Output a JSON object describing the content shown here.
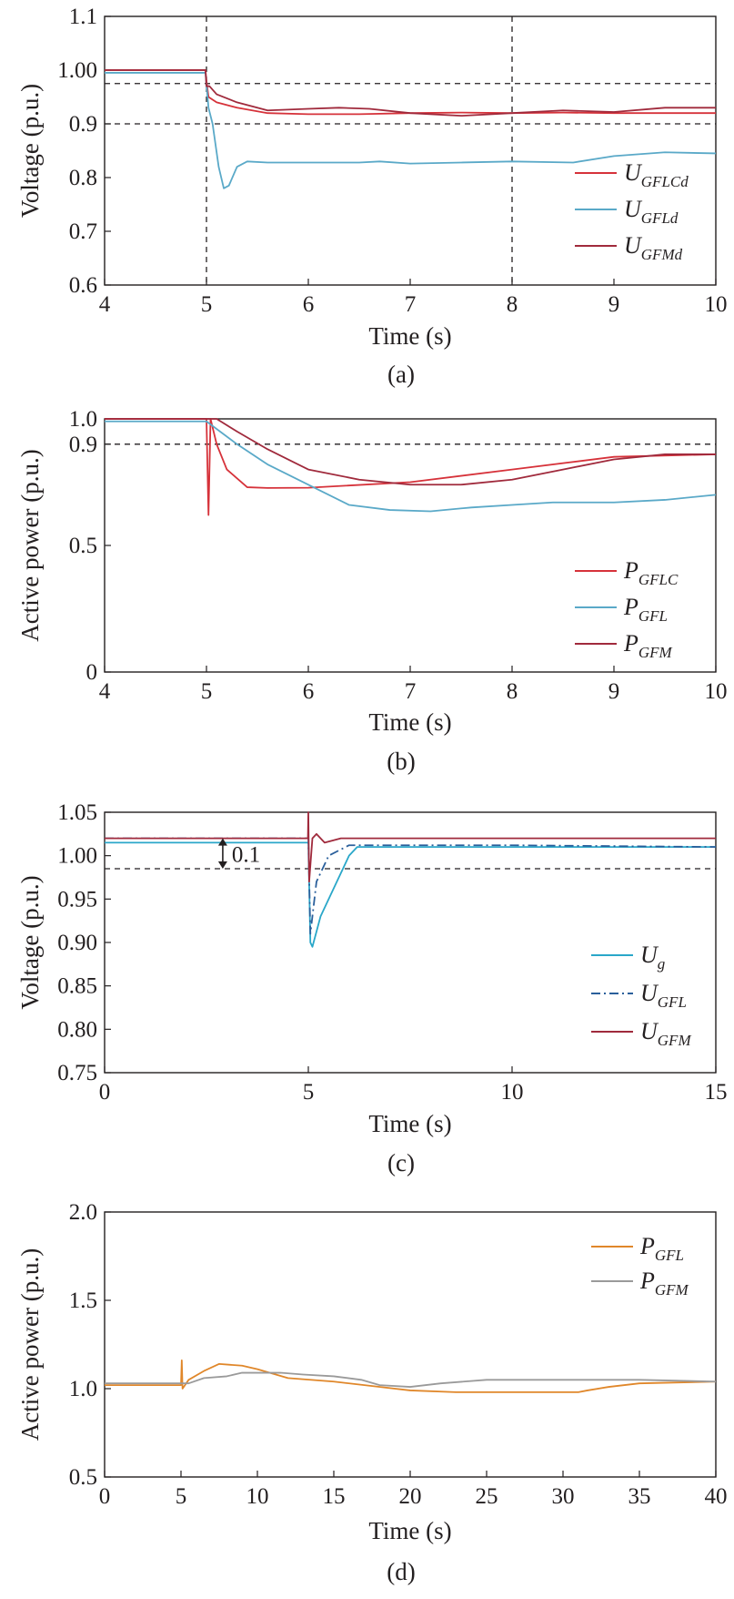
{
  "chart_data": [
    {
      "type": "line",
      "panel_label": "(a)",
      "xlabel": "Time (s)",
      "ylabel": "Voltage (p.u.)",
      "xlim": [
        4,
        10
      ],
      "ylim": [
        0.6,
        1.1
      ],
      "xticks": [
        4,
        5,
        6,
        7,
        8,
        9,
        10
      ],
      "yticks": [
        0.6,
        0.7,
        0.8,
        0.9,
        1.0,
        1.1
      ],
      "ytick_labels": [
        "0.6",
        "0.7",
        "0.8",
        "0.9",
        "1.00",
        "1.1"
      ],
      "grid": false,
      "legend_position": "bottom-right",
      "reference_lines": {
        "horizontal": [
          0.975,
          0.9
        ],
        "vertical": [
          5,
          8
        ]
      },
      "series": [
        {
          "name": "U",
          "subscript": "GFLCd",
          "color": "#d6323a",
          "dash": "",
          "points": [
            [
              4,
              1.0
            ],
            [
              4.99,
              1.0
            ],
            [
              5.0,
              0.98
            ],
            [
              5.02,
              0.95
            ],
            [
              5.1,
              0.94
            ],
            [
              5.3,
              0.93
            ],
            [
              5.6,
              0.92
            ],
            [
              6.0,
              0.918
            ],
            [
              6.5,
              0.918
            ],
            [
              7,
              0.92
            ],
            [
              7.5,
              0.921
            ],
            [
              8,
              0.92
            ],
            [
              8.5,
              0.921
            ],
            [
              9,
              0.92
            ],
            [
              9.5,
              0.92
            ],
            [
              10,
              0.92
            ]
          ]
        },
        {
          "name": "U",
          "subscript": "GFLd",
          "color": "#5aa9c8",
          "dash": "",
          "points": [
            [
              4,
              0.995
            ],
            [
              4.99,
              0.995
            ],
            [
              5.02,
              0.93
            ],
            [
              5.06,
              0.9
            ],
            [
              5.12,
              0.82
            ],
            [
              5.17,
              0.78
            ],
            [
              5.22,
              0.785
            ],
            [
              5.3,
              0.82
            ],
            [
              5.4,
              0.83
            ],
            [
              5.6,
              0.828
            ],
            [
              6,
              0.828
            ],
            [
              6.5,
              0.828
            ],
            [
              6.7,
              0.83
            ],
            [
              7,
              0.826
            ],
            [
              7.5,
              0.828
            ],
            [
              8,
              0.83
            ],
            [
              8.6,
              0.828
            ],
            [
              9,
              0.84
            ],
            [
              9.5,
              0.847
            ],
            [
              10,
              0.845
            ]
          ]
        },
        {
          "name": "U",
          "subscript": "GFMd",
          "color": "#a02a3c",
          "dash": "",
          "points": [
            [
              4,
              1.0
            ],
            [
              4.99,
              1.0
            ],
            [
              5.0,
              0.97
            ],
            [
              5.03,
              0.97
            ],
            [
              5.1,
              0.955
            ],
            [
              5.3,
              0.94
            ],
            [
              5.6,
              0.925
            ],
            [
              6.0,
              0.928
            ],
            [
              6.3,
              0.93
            ],
            [
              6.6,
              0.928
            ],
            [
              7,
              0.92
            ],
            [
              7.5,
              0.915
            ],
            [
              8,
              0.92
            ],
            [
              8.5,
              0.925
            ],
            [
              9,
              0.922
            ],
            [
              9.5,
              0.93
            ],
            [
              10,
              0.93
            ]
          ]
        }
      ]
    },
    {
      "type": "line",
      "panel_label": "(b)",
      "xlabel": "Time (s)",
      "ylabel": "Active power (p.u.)",
      "xlim": [
        4,
        10
      ],
      "ylim": [
        0,
        1.0
      ],
      "xticks": [
        4,
        5,
        6,
        7,
        8,
        9,
        10
      ],
      "yticks": [
        0,
        0.5,
        0.9,
        1.0
      ],
      "ytick_labels": [
        "0",
        "0.5",
        "0.9",
        "1.0"
      ],
      "grid": false,
      "legend_position": "bottom-right",
      "reference_lines": {
        "horizontal": [
          0.9
        ],
        "vertical": []
      },
      "series": [
        {
          "name": "P",
          "subscript": "GFLC",
          "color": "#d6323a",
          "dash": "",
          "points": [
            [
              4,
              1.0
            ],
            [
              5.0,
              1.0
            ],
            [
              5.02,
              0.62
            ],
            [
              5.04,
              1.0
            ],
            [
              5.1,
              0.9
            ],
            [
              5.2,
              0.8
            ],
            [
              5.4,
              0.73
            ],
            [
              5.6,
              0.727
            ],
            [
              6,
              0.728
            ],
            [
              7,
              0.75
            ],
            [
              8,
              0.8
            ],
            [
              9,
              0.85
            ],
            [
              10,
              0.86
            ]
          ]
        },
        {
          "name": "P",
          "subscript": "GFL",
          "color": "#5aa9c8",
          "dash": "",
          "points": [
            [
              4,
              0.99
            ],
            [
              5.0,
              0.99
            ],
            [
              5.3,
              0.9
            ],
            [
              5.6,
              0.82
            ],
            [
              6,
              0.74
            ],
            [
              6.4,
              0.66
            ],
            [
              6.8,
              0.64
            ],
            [
              7.2,
              0.635
            ],
            [
              7.6,
              0.65
            ],
            [
              8,
              0.66
            ],
            [
              8.4,
              0.67
            ],
            [
              9,
              0.67
            ],
            [
              9.5,
              0.68
            ],
            [
              10,
              0.7
            ]
          ]
        },
        {
          "name": "P",
          "subscript": "GFM",
          "color": "#a02a3c",
          "dash": "",
          "points": [
            [
              4,
              1.0
            ],
            [
              5.0,
              1.0
            ],
            [
              5.1,
              1.0
            ],
            [
              5.3,
              0.95
            ],
            [
              5.6,
              0.88
            ],
            [
              6,
              0.8
            ],
            [
              6.5,
              0.76
            ],
            [
              7,
              0.74
            ],
            [
              7.5,
              0.74
            ],
            [
              8,
              0.76
            ],
            [
              8.5,
              0.8
            ],
            [
              9,
              0.84
            ],
            [
              9.5,
              0.86
            ],
            [
              10,
              0.86
            ]
          ]
        }
      ]
    },
    {
      "type": "line",
      "panel_label": "(c)",
      "xlabel": "Time (s)",
      "ylabel": "Voltage (p.u.)",
      "xlim": [
        0,
        15
      ],
      "ylim": [
        0.75,
        1.05
      ],
      "xticks": [
        0,
        5,
        10,
        15
      ],
      "yticks": [
        0.75,
        0.8,
        0.85,
        0.9,
        0.95,
        1.0,
        1.05
      ],
      "ytick_labels": [
        "0.75",
        "0.80",
        "0.85",
        "0.90",
        "0.95",
        "1.00",
        "1.05"
      ],
      "grid": false,
      "legend_position": "bottom-right",
      "reference_lines": {
        "horizontal": [
          0.985
        ],
        "vertical": []
      },
      "annotation": {
        "text": "0.1",
        "x": 2.9,
        "y_from": 1.02,
        "y_to": 0.985
      },
      "series": [
        {
          "name": "U",
          "subscript": "g",
          "color": "#2aa7c9",
          "dash": "",
          "points": [
            [
              0,
              1.015
            ],
            [
              5.0,
              1.015
            ],
            [
              5.05,
              0.9
            ],
            [
              5.1,
              0.895
            ],
            [
              5.3,
              0.93
            ],
            [
              5.6,
              0.96
            ],
            [
              6.0,
              1.0
            ],
            [
              6.2,
              1.01
            ],
            [
              7,
              1.01
            ],
            [
              10,
              1.01
            ],
            [
              15,
              1.01
            ]
          ]
        },
        {
          "name": "U",
          "subscript": "GFL",
          "color": "#2a5f9b",
          "dash": "10 4 2 4",
          "points": [
            [
              0,
              1.02
            ],
            [
              5.0,
              1.02
            ],
            [
              5.05,
              0.91
            ],
            [
              5.2,
              0.97
            ],
            [
              5.5,
              1.0
            ],
            [
              6.0,
              1.012
            ],
            [
              7,
              1.012
            ],
            [
              10,
              1.012
            ],
            [
              15,
              1.01
            ]
          ]
        },
        {
          "name": "U",
          "subscript": "GFM",
          "color": "#a02a3c",
          "dash": "",
          "points": [
            [
              0,
              1.02
            ],
            [
              4.99,
              1.02
            ],
            [
              5.0,
              1.05
            ],
            [
              5.02,
              0.97
            ],
            [
              5.1,
              1.02
            ],
            [
              5.2,
              1.025
            ],
            [
              5.4,
              1.015
            ],
            [
              5.8,
              1.02
            ],
            [
              7,
              1.02
            ],
            [
              10,
              1.02
            ],
            [
              15,
              1.02
            ]
          ]
        }
      ]
    },
    {
      "type": "line",
      "panel_label": "(d)",
      "xlabel": "Time (s)",
      "ylabel": "Active power (p.u.)",
      "xlim": [
        0,
        40
      ],
      "ylim": [
        0.5,
        2.0
      ],
      "xticks": [
        0,
        5,
        10,
        15,
        20,
        25,
        30,
        35,
        40
      ],
      "yticks": [
        0.5,
        1.0,
        1.5,
        2.0
      ],
      "ytick_labels": [
        "0.5",
        "1.0",
        "1.5",
        "2.0"
      ],
      "grid": false,
      "legend_position": "top-right",
      "reference_lines": {
        "horizontal": [],
        "vertical": []
      },
      "series": [
        {
          "name": "P",
          "subscript": "GFL",
          "color": "#e0872a",
          "dash": "",
          "points": [
            [
              0,
              1.02
            ],
            [
              5.0,
              1.02
            ],
            [
              5.05,
              1.16
            ],
            [
              5.1,
              1.0
            ],
            [
              5.5,
              1.05
            ],
            [
              6.5,
              1.1
            ],
            [
              7.5,
              1.14
            ],
            [
              9,
              1.13
            ],
            [
              10,
              1.11
            ],
            [
              12,
              1.06
            ],
            [
              15,
              1.04
            ],
            [
              17,
              1.02
            ],
            [
              20,
              0.99
            ],
            [
              23,
              0.98
            ],
            [
              27,
              0.98
            ],
            [
              31,
              0.98
            ],
            [
              31.6,
              0.99
            ],
            [
              33,
              1.01
            ],
            [
              35,
              1.03
            ],
            [
              40,
              1.04
            ]
          ]
        },
        {
          "name": "P",
          "subscript": "GFM",
          "color": "#9a9a9a",
          "dash": "",
          "points": [
            [
              0,
              1.03
            ],
            [
              5,
              1.03
            ],
            [
              5.5,
              1.03
            ],
            [
              6.5,
              1.06
            ],
            [
              8,
              1.07
            ],
            [
              9,
              1.09
            ],
            [
              10,
              1.09
            ],
            [
              11.5,
              1.09
            ],
            [
              13,
              1.08
            ],
            [
              15,
              1.07
            ],
            [
              16.8,
              1.05
            ],
            [
              18,
              1.02
            ],
            [
              20,
              1.01
            ],
            [
              22,
              1.03
            ],
            [
              25,
              1.05
            ],
            [
              30,
              1.05
            ],
            [
              35,
              1.05
            ],
            [
              40,
              1.04
            ]
          ]
        }
      ]
    }
  ]
}
